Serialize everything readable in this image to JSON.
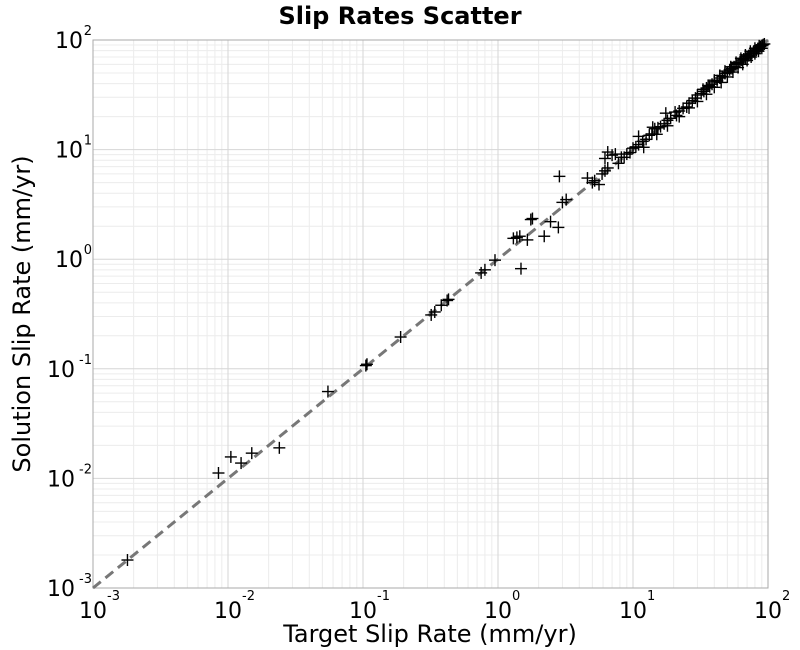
{
  "chart_data": {
    "type": "scatter",
    "title": "Slip Rates Scatter",
    "xlabel": "Target Slip Rate (mm/yr)",
    "ylabel": "Solution Slip Rate (mm/yr)",
    "x_scale": "log",
    "y_scale": "log",
    "xlim": [
      0.001,
      100
    ],
    "ylim": [
      0.001,
      100
    ],
    "x_ticks": [
      {
        "base": "10",
        "exp": "-3"
      },
      {
        "base": "10",
        "exp": "-2"
      },
      {
        "base": "10",
        "exp": "-1"
      },
      {
        "base": "10",
        "exp": "0"
      },
      {
        "base": "10",
        "exp": "1"
      },
      {
        "base": "10",
        "exp": "2"
      }
    ],
    "y_ticks": [
      {
        "base": "10",
        "exp": "-3"
      },
      {
        "base": "10",
        "exp": "-2"
      },
      {
        "base": "10",
        "exp": "-1"
      },
      {
        "base": "10",
        "exp": "0"
      },
      {
        "base": "10",
        "exp": "1"
      },
      {
        "base": "10",
        "exp": "2"
      }
    ],
    "grid": true,
    "marker": "+",
    "marker_color": "#000000",
    "reference_line": {
      "style": "dashed",
      "color": "#777777",
      "x": [
        0.001,
        100
      ],
      "y": [
        0.001,
        100
      ]
    },
    "points": [
      [
        0.0018,
        0.0018
      ],
      [
        0.0085,
        0.0112
      ],
      [
        0.0105,
        0.0157
      ],
      [
        0.0125,
        0.0138
      ],
      [
        0.015,
        0.017
      ],
      [
        0.024,
        0.019
      ],
      [
        0.055,
        0.062
      ],
      [
        0.105,
        0.107
      ],
      [
        0.107,
        0.11
      ],
      [
        0.19,
        0.195
      ],
      [
        0.32,
        0.31
      ],
      [
        0.34,
        0.33
      ],
      [
        0.38,
        0.38
      ],
      [
        0.42,
        0.42
      ],
      [
        0.43,
        0.43
      ],
      [
        0.75,
        0.75
      ],
      [
        0.8,
        0.8
      ],
      [
        0.95,
        0.98
      ],
      [
        1.3,
        1.55
      ],
      [
        1.38,
        1.58
      ],
      [
        1.45,
        1.62
      ],
      [
        1.48,
        0.82
      ],
      [
        1.65,
        1.5
      ],
      [
        1.75,
        2.3
      ],
      [
        1.8,
        2.35
      ],
      [
        2.2,
        1.62
      ],
      [
        2.45,
        2.2
      ],
      [
        2.8,
        1.95
      ],
      [
        2.85,
        5.7
      ],
      [
        3.0,
        3.3
      ],
      [
        3.2,
        3.5
      ],
      [
        4.6,
        5.5
      ],
      [
        5.0,
        5.0
      ],
      [
        5.2,
        5.2
      ],
      [
        5.6,
        4.8
      ],
      [
        5.9,
        6.0
      ],
      [
        6.2,
        6.4
      ],
      [
        6.5,
        6.8
      ],
      [
        6.2,
        8.3
      ],
      [
        6.5,
        9.5
      ],
      [
        7.0,
        8.9
      ],
      [
        7.4,
        9.1
      ],
      [
        7.8,
        7.5
      ],
      [
        8.2,
        8.5
      ],
      [
        8.6,
        8.5
      ],
      [
        9.0,
        9.1
      ],
      [
        9.5,
        9.4
      ],
      [
        10.0,
        10.3
      ],
      [
        10.5,
        10.6
      ],
      [
        11.0,
        11.1
      ],
      [
        11.0,
        13.2
      ],
      [
        11.8,
        11.9
      ],
      [
        12.5,
        12.4
      ],
      [
        13.2,
        13.5
      ],
      [
        13.8,
        13.9
      ],
      [
        14.0,
        16.0
      ],
      [
        14.5,
        15.5
      ],
      [
        15.3,
        15.8
      ],
      [
        16.0,
        16.2
      ],
      [
        17.0,
        17.2
      ],
      [
        17.5,
        21.5
      ],
      [
        18.0,
        18.5
      ],
      [
        19.0,
        19.3
      ],
      [
        20.5,
        22.0
      ],
      [
        21.0,
        20.5
      ],
      [
        22.0,
        22.5
      ],
      [
        23.5,
        23.8
      ],
      [
        25.0,
        24.5
      ],
      [
        26.0,
        26.5
      ],
      [
        27.5,
        28.0
      ],
      [
        29.0,
        29.5
      ],
      [
        30.0,
        31.5
      ],
      [
        32.0,
        32.5
      ],
      [
        33.5,
        34.0
      ],
      [
        35.0,
        36.5
      ],
      [
        37.0,
        37.5
      ],
      [
        38.5,
        39.5
      ],
      [
        40.0,
        41.5
      ],
      [
        42.0,
        42.5
      ],
      [
        44.0,
        45.0
      ],
      [
        46.0,
        46.5
      ],
      [
        48.0,
        49.5
      ],
      [
        50.0,
        50.5
      ],
      [
        52.0,
        53.5
      ],
      [
        54.0,
        55.0
      ],
      [
        56.0,
        57.0
      ],
      [
        58.0,
        59.5
      ],
      [
        60.0,
        61.0
      ],
      [
        62.0,
        63.0
      ],
      [
        64.0,
        65.5
      ],
      [
        66.0,
        67.0
      ],
      [
        68.0,
        68.5
      ],
      [
        70.0,
        70.5
      ],
      [
        72.0,
        72.0
      ],
      [
        74.0,
        74.5
      ],
      [
        76.0,
        75.5
      ],
      [
        78.0,
        78.0
      ],
      [
        80.0,
        79.5
      ],
      [
        82.0,
        81.0
      ],
      [
        84.0,
        83.5
      ],
      [
        86.0,
        85.0
      ],
      [
        88.0,
        87.0
      ],
      [
        90.0,
        89.0
      ],
      [
        92.0,
        90.5
      ],
      [
        94.0,
        92.0
      ],
      [
        12.0,
        10.5
      ],
      [
        15.0,
        13.8
      ],
      [
        18.0,
        16.5
      ],
      [
        22.0,
        20.0
      ],
      [
        26.0,
        24.0
      ],
      [
        30.0,
        27.5
      ],
      [
        35.0,
        32.0
      ],
      [
        40.0,
        37.0
      ],
      [
        45.0,
        41.0
      ],
      [
        50.0,
        46.0
      ],
      [
        55.0,
        51.0
      ],
      [
        60.0,
        56.0
      ],
      [
        65.0,
        60.0
      ],
      [
        70.0,
        65.0
      ],
      [
        75.0,
        70.0
      ],
      [
        80.0,
        75.0
      ],
      [
        85.0,
        79.0
      ],
      [
        90.0,
        84.0
      ],
      [
        33.0,
        35.5
      ],
      [
        36.0,
        38.5
      ],
      [
        40.0,
        43.0
      ],
      [
        44.0,
        47.5
      ],
      [
        48.0,
        52.0
      ],
      [
        53.0,
        57.0
      ],
      [
        58.0,
        62.5
      ],
      [
        63.0,
        68.0
      ],
      [
        68.0,
        73.0
      ],
      [
        74.0,
        79.0
      ],
      [
        80.0,
        84.0
      ],
      [
        86.0,
        88.5
      ]
    ]
  }
}
